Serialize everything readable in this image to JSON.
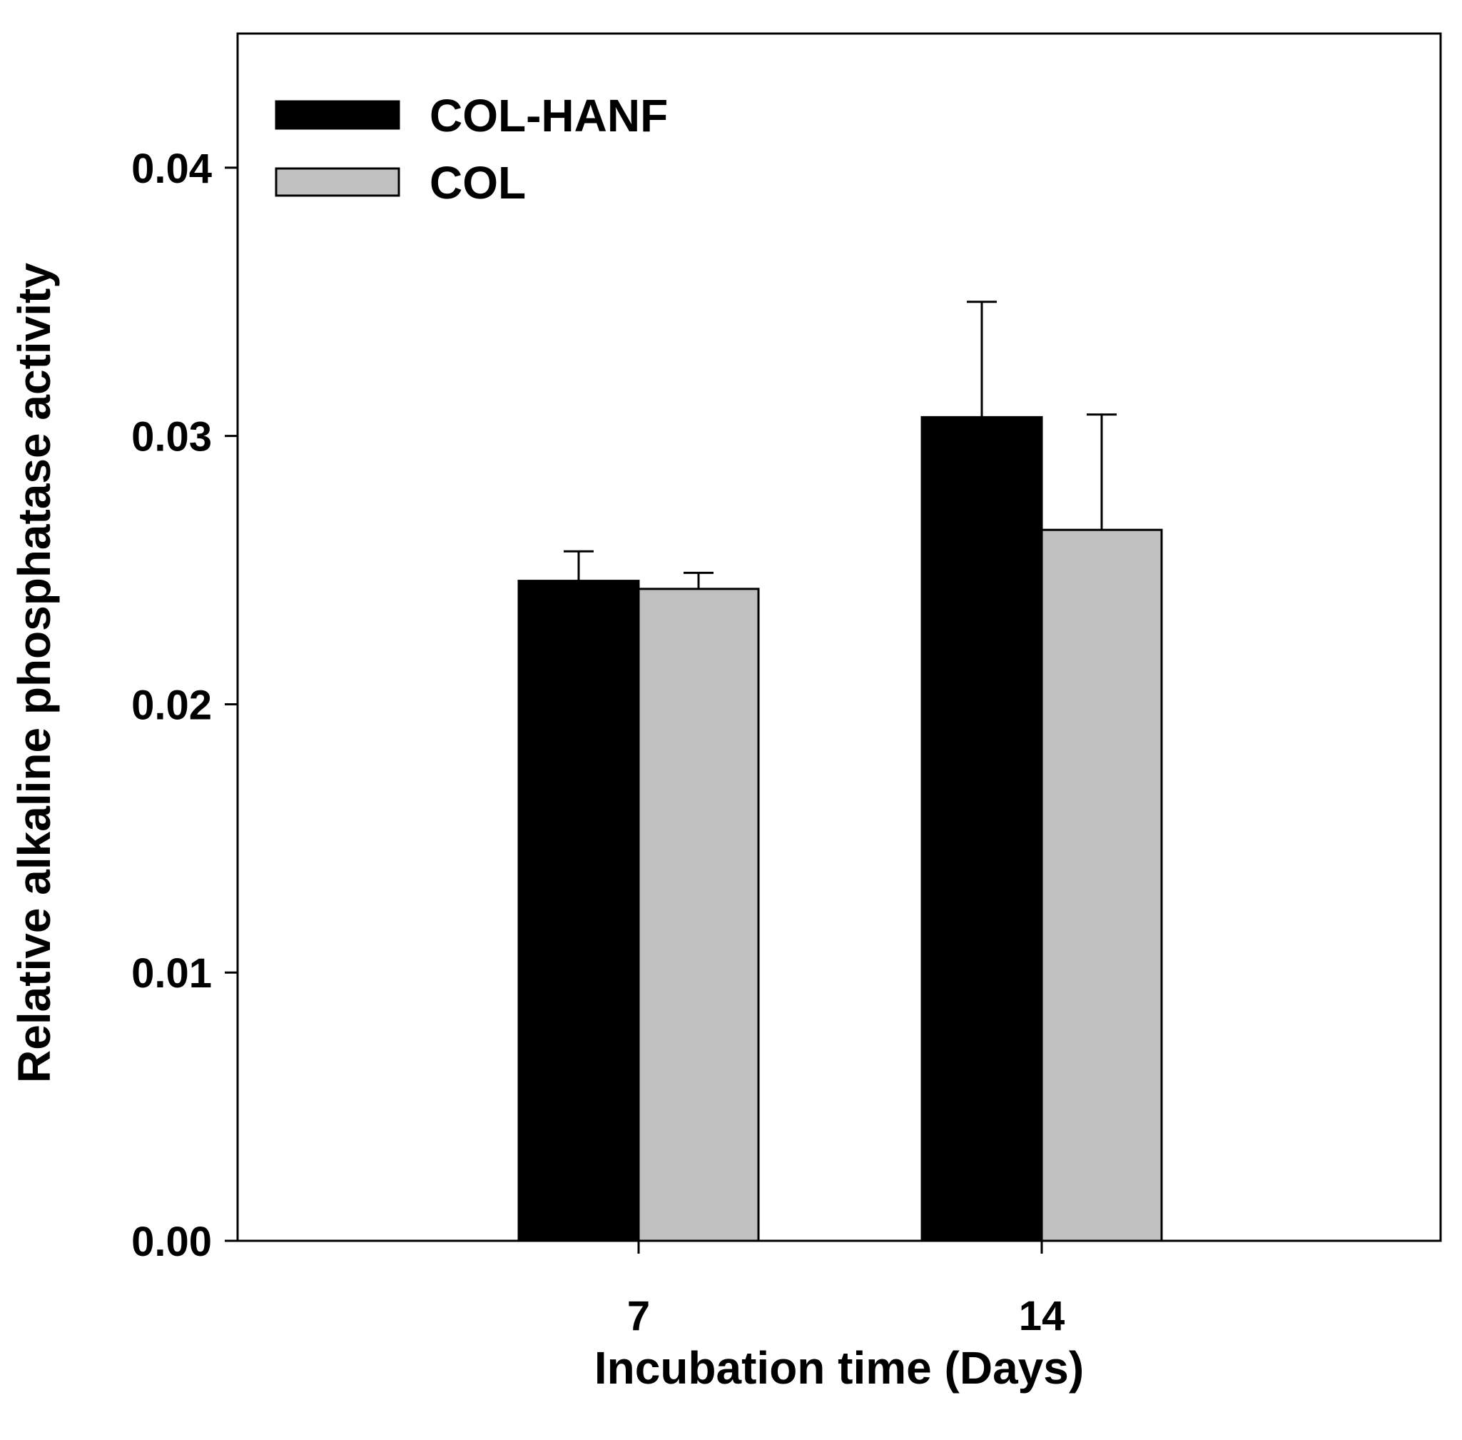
{
  "chart_data": {
    "type": "bar",
    "title": "",
    "xlabel": "Incubation time (Days)",
    "ylabel": "Relative alkaline phosphatase activity",
    "categories": [
      "7",
      "14"
    ],
    "ylim": [
      0,
      0.045
    ],
    "yticks": [
      0.0,
      0.01,
      0.02,
      0.03,
      0.04
    ],
    "ytick_labels": [
      "0.00",
      "0.01",
      "0.02",
      "0.03",
      "0.04"
    ],
    "grid": false,
    "legend_position": "top-left",
    "series": [
      {
        "name": "COL-HANF",
        "color": "#000000",
        "values": [
          0.0246,
          0.0307
        ],
        "errors": [
          0.0011,
          0.0043
        ]
      },
      {
        "name": "COL",
        "color": "#c0c0c0",
        "values": [
          0.0243,
          0.0265
        ],
        "errors": [
          0.0006,
          0.0043
        ]
      }
    ]
  }
}
